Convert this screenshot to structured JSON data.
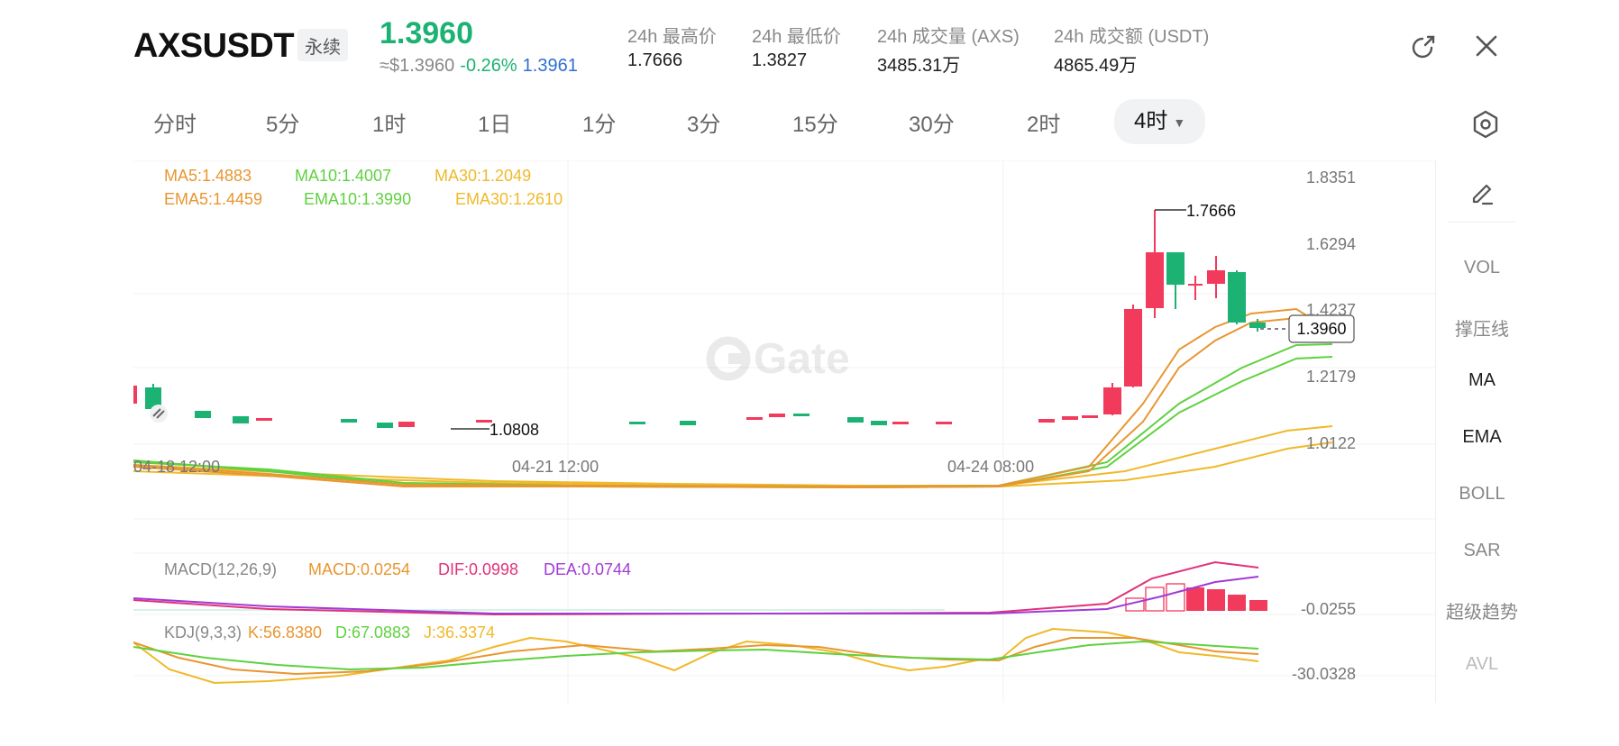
{
  "header": {
    "symbol": "AXSUSDT",
    "badge": "永续",
    "last_price": "1.3960",
    "usd_price": "≈$1.3960",
    "change_pct": "-0.26%",
    "mark_price": "1.3961",
    "stats": [
      {
        "label": "24h 最高价",
        "value": "1.7666"
      },
      {
        "label": "24h 最低价",
        "value": "1.3827"
      },
      {
        "label": "24h 成交量 (AXS)",
        "value": "3485.31万"
      },
      {
        "label": "24h 成交额 (USDT)",
        "value": "4865.49万"
      }
    ],
    "icons": [
      "share-icon",
      "close-icon"
    ]
  },
  "timeframes": {
    "tabs": [
      "分时",
      "5分",
      "1时",
      "1日",
      "1分",
      "3分",
      "15分",
      "30分",
      "2时"
    ],
    "active": "4时"
  },
  "indicators": {
    "ma_line": [
      {
        "text": "MA5:1.4883",
        "color": "#e8962f"
      },
      {
        "text": "MA10:1.4007",
        "color": "#5fd13f"
      },
      {
        "text": "MA30:1.2049",
        "color": "#f0b92a"
      }
    ],
    "ema_line": [
      {
        "text": "EMA5:1.4459",
        "color": "#e8962f"
      },
      {
        "text": "EMA10:1.3990",
        "color": "#5fd13f"
      },
      {
        "text": "EMA30:1.2610",
        "color": "#f0b92a"
      }
    ],
    "macd": [
      {
        "text": "MACD(12,26,9)",
        "color": "#888888"
      },
      {
        "text": "MACD:0.0254",
        "color": "#e8962f"
      },
      {
        "text": "DIF:0.0998",
        "color": "#e0337a"
      },
      {
        "text": "DEA:0.0744",
        "color": "#a23ad6"
      }
    ],
    "kdj": [
      {
        "text": "KDJ(9,3,3)",
        "color": "#888888"
      },
      {
        "text": "K:56.8380",
        "color": "#e8962f"
      },
      {
        "text": "D:67.0883",
        "color": "#5fd13f"
      },
      {
        "text": "J:36.3374",
        "color": "#f0b92a"
      }
    ]
  },
  "chart": {
    "y_ticks": [
      "1.8351",
      "1.6294",
      "1.4237",
      "1.2179",
      "1.0122"
    ],
    "x_ticks": [
      "04-18 12:00",
      "04-21 12:00",
      "04-24 08:00"
    ],
    "high_label": "1.7666",
    "low_label": "1.0808",
    "current_price_tag": "1.3960",
    "macd_tick": "-0.0255",
    "kdj_tick": "-30.0328",
    "colors": {
      "up": "#f23a5c",
      "down": "#1bb273"
    }
  },
  "side_panel": {
    "edit_icon": "pencil-icon",
    "items": [
      "VOL",
      "撑压线",
      "MA",
      "EMA",
      "BOLL",
      "SAR",
      "超级趋势",
      "AVL"
    ]
  }
}
